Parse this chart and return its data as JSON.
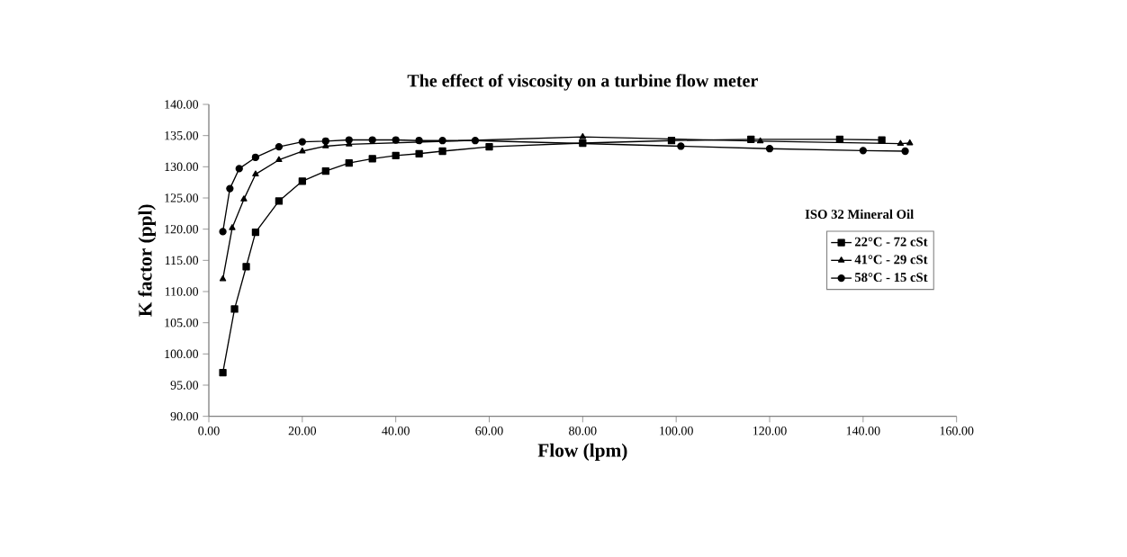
{
  "chart_data": {
    "type": "line",
    "title": "The effect of viscosity on a turbine flow meter",
    "xlabel": "Flow (lpm)",
    "ylabel": "K factor (ppl)",
    "legend_title": "ISO 32 Mineral Oil",
    "legend": "right",
    "xlim": [
      0,
      160
    ],
    "ylim": [
      90,
      140
    ],
    "xticks": [
      {
        "value": 0,
        "label": "0.00"
      },
      {
        "value": 20,
        "label": "20.00"
      },
      {
        "value": 40,
        "label": "40.00"
      },
      {
        "value": 60,
        "label": "60.00"
      },
      {
        "value": 80,
        "label": "80.00"
      },
      {
        "value": 100,
        "label": "100.00"
      },
      {
        "value": 120,
        "label": "120.00"
      },
      {
        "value": 140,
        "label": "140.00"
      },
      {
        "value": 160,
        "label": "160.00"
      }
    ],
    "yticks": [
      {
        "value": 90,
        "label": "90.00"
      },
      {
        "value": 95,
        "label": "95.00"
      },
      {
        "value": 100,
        "label": "100.00"
      },
      {
        "value": 105,
        "label": "105.00"
      },
      {
        "value": 110,
        "label": "110.00"
      },
      {
        "value": 115,
        "label": "115.00"
      },
      {
        "value": 120,
        "label": "120.00"
      },
      {
        "value": 125,
        "label": "125.00"
      },
      {
        "value": 130,
        "label": "130.00"
      },
      {
        "value": 135,
        "label": "135.00"
      },
      {
        "value": 140,
        "label": "140.00"
      }
    ],
    "series": [
      {
        "name": "22°C - 72 cSt",
        "color": "#000000",
        "marker": "square",
        "x": [
          3,
          5.5,
          8,
          10,
          15,
          20,
          25,
          30,
          35,
          40,
          45,
          50,
          60,
          80,
          99,
          116,
          135,
          144
        ],
        "values": [
          97,
          107.2,
          114,
          119.5,
          124.5,
          127.7,
          129.3,
          130.6,
          131.3,
          131.8,
          132.1,
          132.5,
          133.2,
          133.8,
          134.2,
          134.4,
          134.4,
          134.3
        ]
      },
      {
        "name": "41°C - 29 cSt",
        "color": "#000000",
        "marker": "triangle",
        "x": [
          3,
          5,
          7.5,
          10,
          15,
          20,
          25,
          30,
          35,
          80,
          118,
          148,
          150
        ],
        "values": [
          112,
          120.2,
          124.8,
          128.8,
          131.1,
          132.5,
          133.3,
          133.6,
          null,
          134.8,
          134.1,
          133.7,
          133.8
        ]
      },
      {
        "name": "58°C - 15 cSt",
        "color": "#000000",
        "marker": "circle",
        "x": [
          3,
          4.5,
          6.5,
          10,
          15,
          20,
          25,
          30,
          35,
          40,
          45,
          50,
          57,
          80,
          101,
          120,
          140,
          149
        ],
        "values": [
          119.6,
          126.5,
          129.7,
          131.5,
          133.2,
          134.0,
          134.1,
          134.3,
          134.3,
          134.3,
          134.2,
          134.2,
          134.2,
          null,
          133.3,
          132.9,
          132.6,
          132.5
        ]
      }
    ]
  }
}
